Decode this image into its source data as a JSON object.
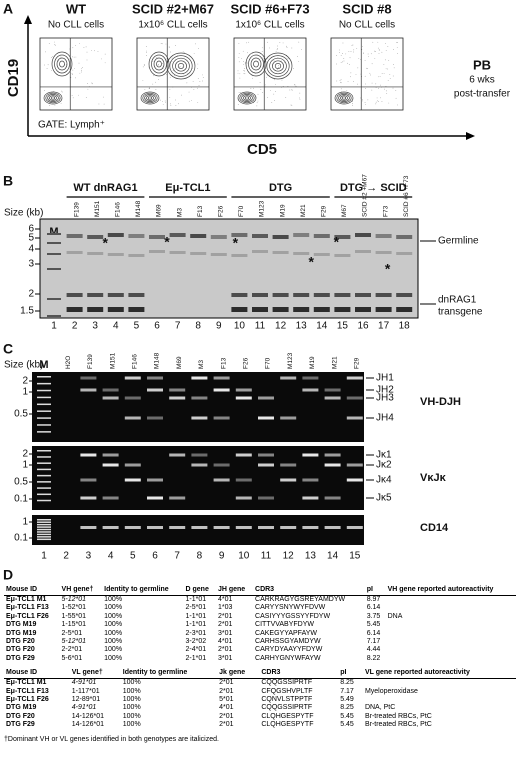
{
  "panel_a": {
    "label": "A",
    "plots": [
      {
        "title": "WT",
        "subtitle": "No CLL cells"
      },
      {
        "title": "SCID #2+M67",
        "subtitle": "1x10⁶ CLL cells"
      },
      {
        "title": "SCID #6+F73",
        "subtitle": "1x10⁶ CLL cells"
      },
      {
        "title": "SCID #8",
        "subtitle": "No CLL cells"
      }
    ],
    "y_axis": "CD19",
    "x_axis": "CD5",
    "gate": "GATE: Lymph⁺",
    "side_note": [
      "PB",
      "6 wks",
      "post-transfer"
    ]
  },
  "panel_b": {
    "label": "B",
    "size_label": "Size (kb)",
    "marker": "M",
    "groups": [
      "WT dnRAG1",
      "Eμ-TCL1",
      "DTG",
      "DTG → SCID"
    ],
    "sizes": [
      "6",
      "5",
      "4",
      "3",
      "2",
      "1.5"
    ],
    "lane_names": [
      "F139",
      "M151",
      "F146",
      "M148",
      "M69",
      "M3",
      "F13",
      "F26",
      "F70",
      "M123",
      "M19",
      "M21",
      "F29",
      "M67",
      "SCID #2 +M67",
      "F73",
      "SCID #6 +F73"
    ],
    "lane_numbers": [
      1,
      2,
      3,
      4,
      5,
      6,
      7,
      8,
      9,
      10,
      11,
      12,
      13,
      14,
      15,
      16,
      17,
      18
    ],
    "asterisks": [
      "*",
      "*",
      "*",
      "*",
      "*",
      "*"
    ],
    "germline": "Germline",
    "transgene": [
      "dnRAG1",
      "transgene"
    ]
  },
  "panel_c": {
    "label": "C",
    "size_label": "Size (kb)",
    "marker": "M",
    "lane_names": [
      "H2O",
      "F139",
      "M151",
      "F146",
      "M148",
      "M69",
      "M3",
      "F13",
      "F26",
      "F70",
      "M123",
      "M19",
      "M21",
      "F29"
    ],
    "lane_numbers": [
      1,
      2,
      3,
      4,
      5,
      6,
      7,
      8,
      9,
      10,
      11,
      12,
      13,
      14,
      15
    ],
    "gels": [
      {
        "sizes": [
          "2",
          "1",
          "0.5"
        ],
        "bands": [
          "JH1",
          "JH2",
          "JH3",
          "JH4"
        ],
        "name": "VH-DJH"
      },
      {
        "sizes": [
          "2",
          "1",
          "0.5",
          "0.1"
        ],
        "bands": [
          "Jκ1",
          "Jκ2",
          "Jκ4",
          "Jκ5"
        ],
        "name": "VκJκ"
      },
      {
        "sizes": [
          "1",
          "0.1"
        ],
        "name": "CD14"
      }
    ]
  },
  "panel_d": {
    "label": "D",
    "table_1": {
      "headers": [
        "Mouse ID",
        "VH gene†",
        "Identity to germline",
        "D gene",
        "JH gene",
        "CDR3",
        "pI",
        "VH gene reported autoreactivity"
      ],
      "rows": [
        {
          "cells": [
            "Eμ-TCL1 M1",
            "5-12*01",
            "100%",
            "1-1*01",
            "4*01",
            "CARKRAGYGSREYAMDYW",
            8.97,
            null
          ],
          "italic_gene": true
        },
        {
          "cells": [
            "Eμ-TCL1 F13",
            "1-52*01",
            "100%",
            "2-5*01",
            "1*03",
            "CARYYSNYWYFDVW",
            6.14,
            null
          ]
        },
        {
          "cells": [
            "Eμ-TCL1 F26",
            "1-55*01",
            "100%",
            "1-1*01",
            "2*01",
            "CASIYYYGSSYYFDYW",
            3.75,
            "DNA"
          ]
        },
        {
          "cells": [
            "DTG M19",
            "1-15*01",
            "100%",
            "1-1*01",
            "2*01",
            "CITTVVABYFDYW",
            5.45,
            null
          ]
        },
        {
          "cells": [
            "DTG M19",
            "2-5*01",
            "100%",
            "2-3*01",
            "3*01",
            "CAKEGYYAPFAYW",
            6.14,
            null
          ]
        },
        {
          "cells": [
            "DTG F20",
            "5-12*01",
            "100%",
            "3-2*02",
            "4*01",
            "CARHSSGYAMDYW",
            7.17,
            null
          ],
          "italic_gene": true
        },
        {
          "cells": [
            "DTG F20",
            "2-2*01",
            "100%",
            "2-4*01",
            "2*01",
            "CARYDYAAYYFDYW",
            4.44,
            null
          ]
        },
        {
          "cells": [
            "DTG F29",
            "5-6*01",
            "100%",
            "2-1*01",
            "3*01",
            "CARHYGNYWFAYW",
            8.22,
            null
          ]
        }
      ]
    },
    "table_2": {
      "headers": [
        "Mouse ID",
        "VL gene†",
        "Identity to germline",
        "Jk gene",
        "CDR3",
        "pI",
        "VL gene reported autoreactivity"
      ],
      "rows": [
        {
          "cells": [
            "Eμ-TCL1 M1",
            "4-91*01",
            "100%",
            "2*01",
            "CQQGSSIPRTF",
            8.25,
            null
          ],
          "italic_gene": true
        },
        {
          "cells": [
            "Eμ-TCL1 F13",
            "1-117*01",
            "100%",
            "2*01",
            "CFQGSHVPLTF",
            7.17,
            "Myeloperoxidase"
          ]
        },
        {
          "cells": [
            "Eμ-TCL1 F26",
            "12-89*01",
            "100%",
            "5*01",
            "CQNVLSTPPTF",
            5.49,
            null
          ]
        },
        {
          "cells": [
            "DTG M19",
            "4-91*01",
            "100%",
            "4*01",
            "CQQGSSIPRTF",
            8.25,
            "DNA, PtC"
          ],
          "italic_gene": true
        },
        {
          "cells": [
            "DTG F20",
            "14-126*01",
            "100%",
            "2*01",
            "CLQHGESPYTF",
            5.45,
            "Br-treated RBCs, PtC"
          ]
        },
        {
          "cells": [
            "DTG F29",
            "14-126*01",
            "100%",
            "2*01",
            "CLQHGESPYTF",
            5.45,
            "Br-treated RBCs, PtC"
          ]
        }
      ]
    },
    "footnote": "†Dominant VH or VL genes identified in both genotypes are italicized."
  }
}
